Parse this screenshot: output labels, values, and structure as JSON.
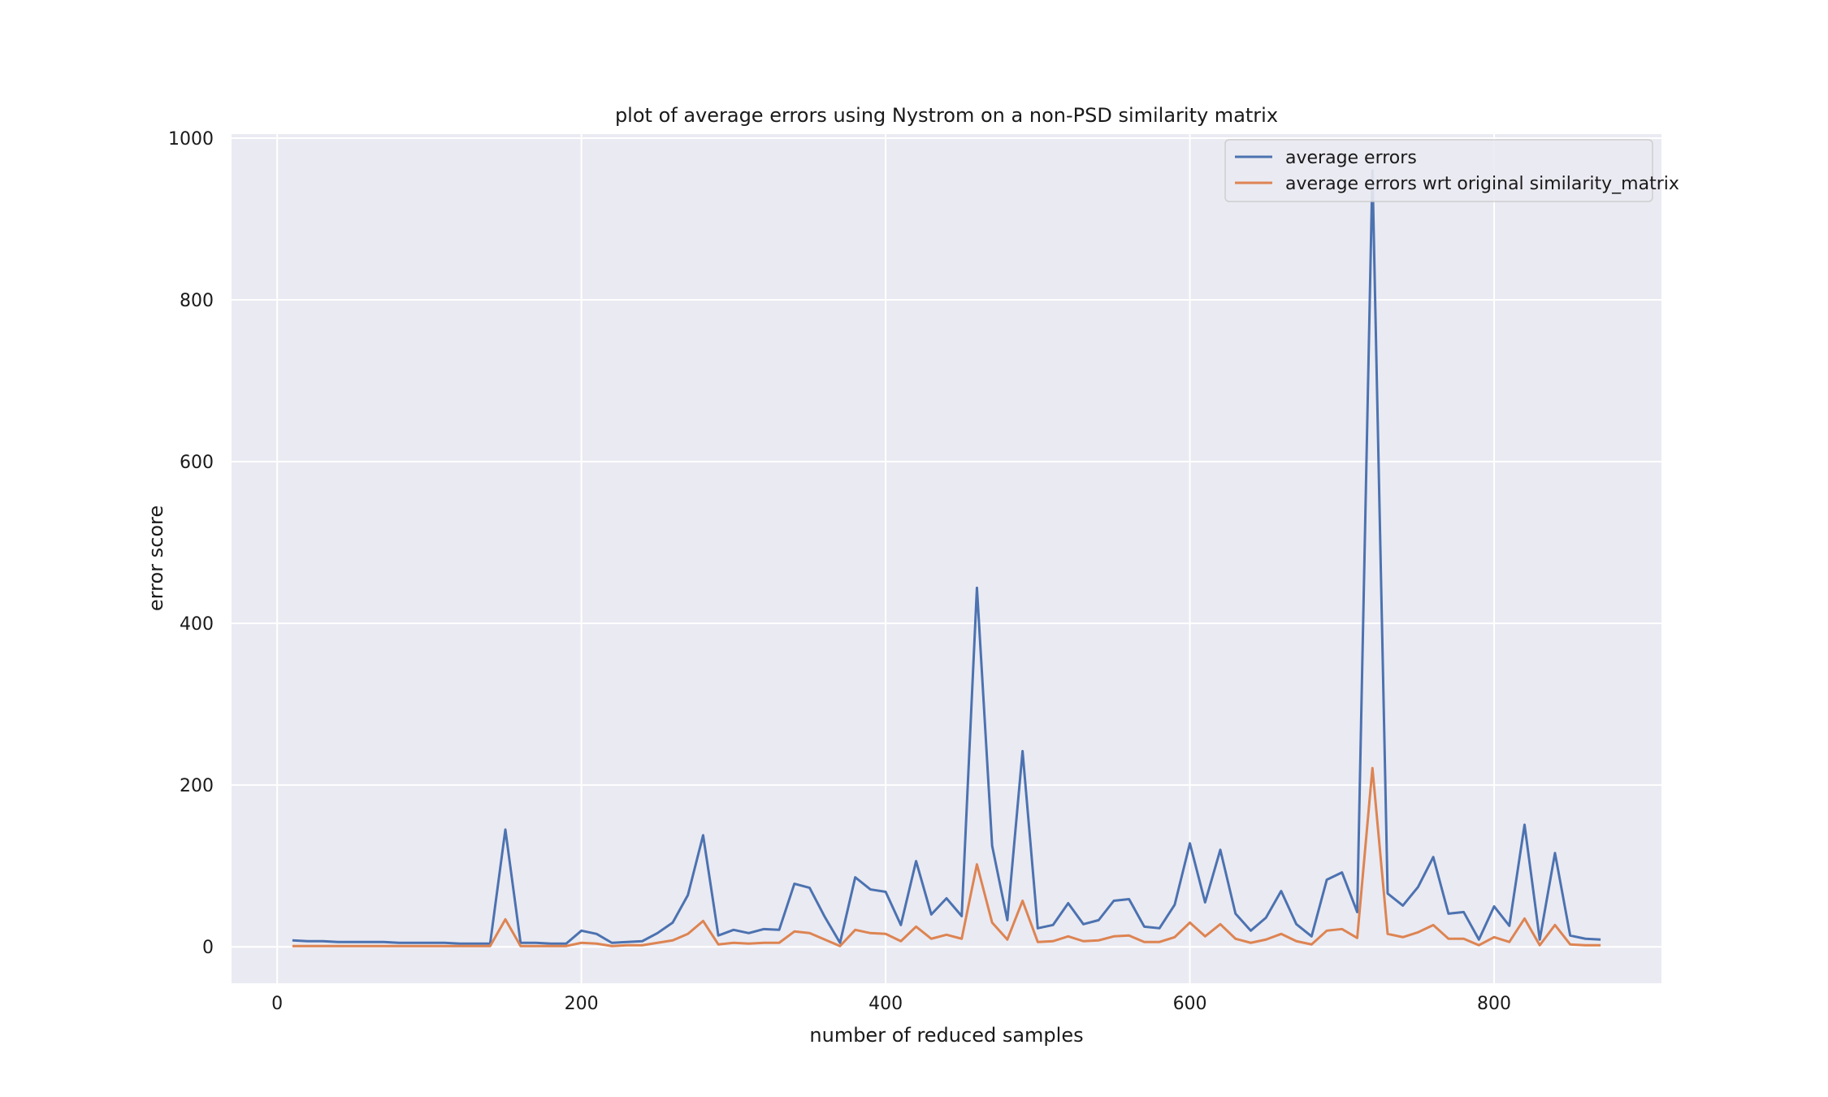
{
  "chart_data": {
    "type": "line",
    "title": "plot of average errors using Nystrom on a non-PSD similarity matrix",
    "xlabel": "number of reduced samples",
    "ylabel": "error score",
    "xlim": [
      -30,
      910
    ],
    "ylim": [
      -45,
      1005
    ],
    "xticks": [
      0,
      200,
      400,
      600,
      800
    ],
    "yticks": [
      0,
      200,
      400,
      600,
      800,
      1000
    ],
    "grid": true,
    "legend": "top-right",
    "colors": {
      "background": "#eaeaf2",
      "grid": "#ffffff"
    },
    "x": [
      10,
      20,
      30,
      40,
      50,
      60,
      70,
      80,
      90,
      100,
      110,
      120,
      130,
      140,
      150,
      160,
      170,
      180,
      190,
      200,
      210,
      220,
      230,
      240,
      250,
      260,
      270,
      280,
      290,
      300,
      310,
      320,
      330,
      340,
      350,
      360,
      370,
      380,
      390,
      400,
      410,
      420,
      430,
      440,
      450,
      460,
      470,
      480,
      490,
      500,
      510,
      520,
      530,
      540,
      550,
      560,
      570,
      580,
      590,
      600,
      610,
      620,
      630,
      640,
      650,
      660,
      670,
      680,
      690,
      700,
      710,
      720,
      730,
      740,
      750,
      760,
      770,
      780,
      790,
      800,
      810,
      820,
      830,
      840,
      850,
      860,
      870
    ],
    "series": [
      {
        "name": "average errors",
        "color": "#4c72b0",
        "values": [
          8,
          7,
          7,
          6,
          6,
          6,
          6,
          5,
          5,
          5,
          5,
          4,
          4,
          4,
          145,
          5,
          5,
          4,
          4,
          20,
          16,
          5,
          6,
          7,
          17,
          30,
          64,
          138,
          14,
          21,
          17,
          22,
          21,
          78,
          73,
          37,
          5,
          86,
          71,
          68,
          27,
          106,
          40,
          60,
          38,
          444,
          125,
          33,
          242,
          23,
          27,
          54,
          28,
          33,
          57,
          59,
          25,
          23,
          52,
          128,
          55,
          120,
          41,
          20,
          36,
          69,
          28,
          13,
          83,
          92,
          43,
          960,
          66,
          51,
          74,
          111,
          41,
          43,
          9,
          50,
          26,
          151,
          9,
          116,
          14,
          10,
          9
        ]
      },
      {
        "name": "average errors wrt original similarity_matrix",
        "color": "#dd8452",
        "values": [
          1,
          1,
          1,
          1,
          1,
          1,
          1,
          1,
          1,
          1,
          1,
          1,
          1,
          1,
          34,
          1,
          1,
          1,
          1,
          5,
          4,
          1,
          2,
          2,
          5,
          8,
          16,
          32,
          3,
          5,
          4,
          5,
          5,
          19,
          17,
          9,
          1,
          21,
          17,
          16,
          7,
          25,
          10,
          15,
          10,
          102,
          30,
          9,
          57,
          6,
          7,
          13,
          7,
          8,
          13,
          14,
          6,
          6,
          12,
          30,
          13,
          28,
          10,
          5,
          9,
          16,
          7,
          3,
          20,
          22,
          11,
          221,
          16,
          12,
          18,
          27,
          10,
          10,
          2,
          12,
          6,
          35,
          2,
          27,
          3,
          2,
          2
        ]
      }
    ]
  }
}
